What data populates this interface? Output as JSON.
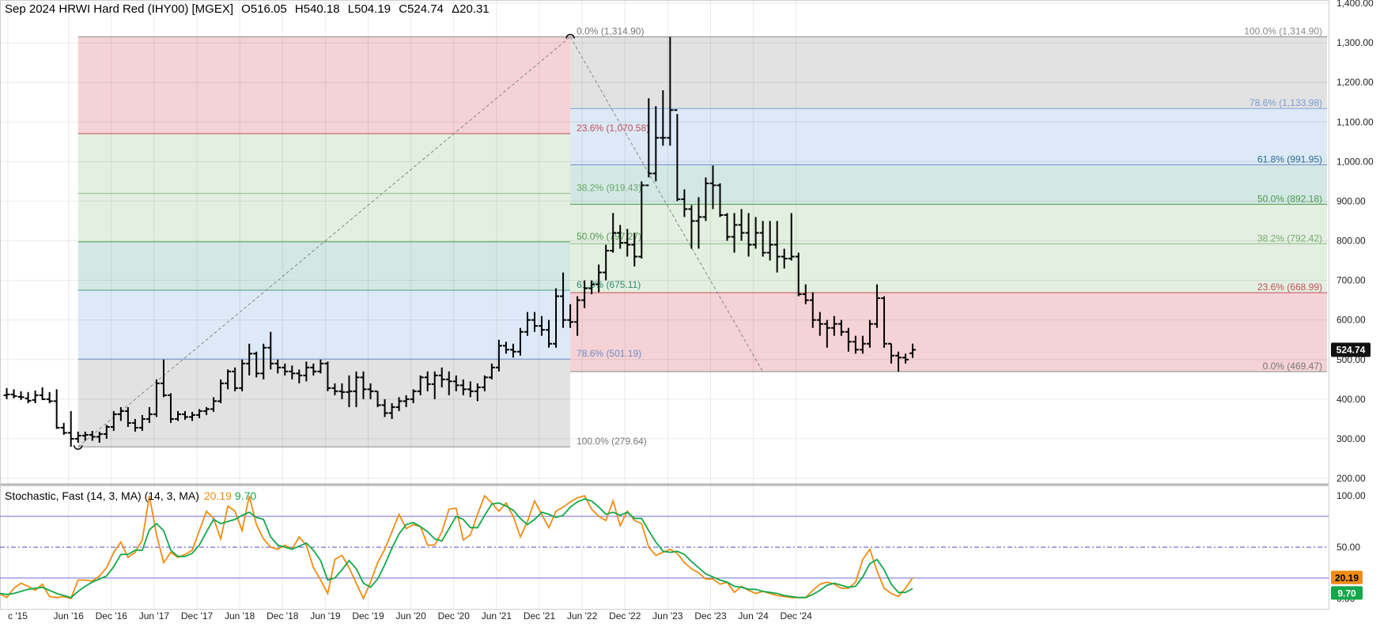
{
  "header": {
    "title": "Sep 2024 HRWI Hard Red (IHY00) [MGEX]",
    "open": "O516.05",
    "high": "H540.18",
    "low": "L504.19",
    "close": "C524.74",
    "change": "Δ20.31"
  },
  "stochastic_header": {
    "label": "Stochastic, Fast (14, 3, MA)  (14, 3, MA)",
    "k_value": "20.19",
    "d_value": "9.70"
  },
  "price_badge": "524.74",
  "k_badge": "20.19",
  "d_badge": "9.70",
  "colors": {
    "fib_red": "#f5d2d6",
    "fib_green": "#e3efe0",
    "fib_teal": "#d3e8e4",
    "fib_blue": "#dde9f7",
    "fib_gray": "#e2e2e2",
    "stoch_k": "#f28c14",
    "stoch_d": "#12a84a"
  },
  "chart_data": [
    {
      "type": "ohlc",
      "ylim": [
        200,
        1400
      ],
      "y_ticks": [
        "200.00",
        "300.00",
        "400.00",
        "500.00",
        "600.00",
        "700.00",
        "800.00",
        "900.00",
        "1,000.00",
        "1,100.00",
        "1,200.00",
        "1,300.00",
        "1,400.00"
      ],
      "x_ticks": [
        "c '15",
        "Jun '16",
        "Dec '16",
        "Jun '17",
        "Dec '17",
        "Jun '18",
        "Dec '18",
        "Jun '19",
        "Dec '19",
        "Jun '20",
        "Dec '20",
        "Jun '21",
        "Dec '21",
        "Jun '22",
        "Dec '22",
        "Jun '23",
        "Dec '23",
        "Jun '24",
        "Dec '24"
      ],
      "x_start": "2015-10",
      "fib_retracement_up": {
        "from": {
          "date": "2016-08",
          "value": 279.64
        },
        "to": {
          "date": "2022-05",
          "value": 1314.9
        },
        "levels": [
          {
            "label": "0.0% (1,314.90)",
            "value": 1314.9
          },
          {
            "label": "23.6% (1,070.58)",
            "value": 1070.58
          },
          {
            "label": "38.2% (919.43)",
            "value": 919.43
          },
          {
            "label": "50.0% (797.27)",
            "value": 797.27
          },
          {
            "label": "61.8% (675.11)",
            "value": 675.11
          },
          {
            "label": "78.6% (501.19)",
            "value": 501.19
          },
          {
            "label": "100.0% (279.64)",
            "value": 279.64
          }
        ]
      },
      "fib_retracement_down": {
        "from": {
          "date": "2022-05",
          "value": 1314.9
        },
        "to": {
          "date": "2024-08",
          "value": 469.47
        },
        "levels": [
          {
            "label": "100.0% (1,314.90)",
            "value": 1314.9
          },
          {
            "label": "78.6% (1,133.98)",
            "value": 1133.98
          },
          {
            "label": "61.8% (991.95)",
            "value": 991.95
          },
          {
            "label": "50.0% (892.18)",
            "value": 892.18
          },
          {
            "label": "38.2% (792.42)",
            "value": 792.42
          },
          {
            "label": "23.6% (668.99)",
            "value": 668.99
          },
          {
            "label": "0.0% (469.47)",
            "value": 469.47
          }
        ]
      },
      "bars": [
        [
          410,
          428,
          400,
          412
        ],
        [
          412,
          425,
          402,
          408
        ],
        [
          406,
          420,
          398,
          405
        ],
        [
          402,
          418,
          390,
          396
        ],
        [
          398,
          422,
          390,
          410
        ],
        [
          410,
          430,
          398,
          400
        ],
        [
          400,
          418,
          390,
          395
        ],
        [
          395,
          425,
          325,
          328
        ],
        [
          328,
          340,
          310,
          315
        ],
        [
          315,
          370,
          280,
          300
        ],
        [
          300,
          318,
          290,
          308
        ],
        [
          308,
          318,
          295,
          310
        ],
        [
          310,
          320,
          295,
          305
        ],
        [
          305,
          318,
          290,
          312
        ],
        [
          312,
          335,
          300,
          330
        ],
        [
          330,
          370,
          320,
          362
        ],
        [
          362,
          380,
          345,
          370
        ],
        [
          370,
          380,
          330,
          340
        ],
        [
          340,
          350,
          318,
          328
        ],
        [
          328,
          360,
          320,
          350
        ],
        [
          350,
          380,
          340,
          362
        ],
        [
          362,
          450,
          355,
          440
        ],
        [
          440,
          500,
          405,
          410
        ],
        [
          410,
          415,
          340,
          350
        ],
        [
          350,
          370,
          345,
          362
        ],
        [
          362,
          370,
          348,
          355
        ],
        [
          355,
          368,
          345,
          360
        ],
        [
          360,
          375,
          352,
          370
        ],
        [
          370,
          380,
          360,
          375
        ],
        [
          375,
          405,
          368,
          395
        ],
        [
          395,
          450,
          390,
          440
        ],
        [
          440,
          475,
          425,
          470
        ],
        [
          470,
          480,
          420,
          428
        ],
        [
          428,
          500,
          420,
          490
        ],
        [
          490,
          540,
          460,
          515
        ],
        [
          515,
          520,
          455,
          465
        ],
        [
          465,
          540,
          450,
          530
        ],
        [
          530,
          570,
          475,
          490
        ],
        [
          490,
          500,
          465,
          480
        ],
        [
          480,
          490,
          460,
          470
        ],
        [
          470,
          485,
          450,
          465
        ],
        [
          465,
          475,
          440,
          460
        ],
        [
          460,
          495,
          445,
          480
        ],
        [
          480,
          490,
          460,
          470
        ],
        [
          470,
          500,
          465,
          490
        ],
        [
          490,
          495,
          420,
          428
        ],
        [
          428,
          440,
          410,
          420
        ],
        [
          420,
          440,
          400,
          418
        ],
        [
          418,
          460,
          380,
          420
        ],
        [
          420,
          470,
          380,
          455
        ],
        [
          455,
          470,
          400,
          425
        ],
        [
          425,
          440,
          400,
          420
        ],
        [
          420,
          420,
          380,
          385
        ],
        [
          385,
          400,
          355,
          365
        ],
        [
          365,
          390,
          350,
          380
        ],
        [
          380,
          405,
          370,
          395
        ],
        [
          395,
          410,
          380,
          400
        ],
        [
          400,
          425,
          390,
          420
        ],
        [
          420,
          460,
          410,
          455
        ],
        [
          455,
          470,
          420,
          438
        ],
        [
          438,
          470,
          400,
          460
        ],
        [
          460,
          480,
          430,
          450
        ],
        [
          450,
          470,
          410,
          445
        ],
        [
          445,
          460,
          420,
          435
        ],
        [
          435,
          450,
          410,
          425
        ],
        [
          425,
          445,
          405,
          420
        ],
        [
          420,
          440,
          395,
          430
        ],
        [
          430,
          460,
          420,
          455
        ],
        [
          455,
          490,
          450,
          480
        ],
        [
          480,
          550,
          470,
          535
        ],
        [
          535,
          545,
          515,
          525
        ],
        [
          525,
          540,
          505,
          520
        ],
        [
          520,
          580,
          510,
          570
        ],
        [
          570,
          620,
          560,
          600
        ],
        [
          600,
          620,
          570,
          585
        ],
        [
          585,
          610,
          560,
          575
        ],
        [
          575,
          600,
          530,
          540
        ],
        [
          540,
          680,
          530,
          660
        ],
        [
          660,
          720,
          580,
          600
        ],
        [
          600,
          640,
          580,
          595
        ],
        [
          595,
          660,
          560,
          650
        ],
        [
          650,
          700,
          630,
          680
        ],
        [
          680,
          700,
          665,
          690
        ],
        [
          690,
          740,
          670,
          720
        ],
        [
          720,
          790,
          700,
          775
        ],
        [
          775,
          870,
          770,
          820
        ],
        [
          820,
          840,
          780,
          795
        ],
        [
          795,
          830,
          760,
          790
        ],
        [
          790,
          820,
          735,
          760
        ],
        [
          760,
          950,
          755,
          940
        ],
        [
          940,
          1160,
          960,
          970
        ],
        [
          970,
          1140,
          950,
          1060
        ],
        [
          1060,
          1180,
          1040,
          1060
        ],
        [
          1060,
          1314.9,
          1040,
          1130
        ],
        [
          1130,
          1120,
          900,
          905
        ],
        [
          905,
          930,
          860,
          880
        ],
        [
          880,
          890,
          780,
          850
        ],
        [
          850,
          910,
          780,
          860
        ],
        [
          860,
          960,
          850,
          945
        ],
        [
          945,
          990,
          880,
          940
        ],
        [
          940,
          945,
          860,
          865
        ],
        [
          865,
          870,
          800,
          810
        ],
        [
          810,
          870,
          770,
          840
        ],
        [
          840,
          880,
          800,
          820
        ],
        [
          820,
          870,
          760,
          790
        ],
        [
          790,
          860,
          780,
          820
        ],
        [
          820,
          850,
          760,
          770
        ],
        [
          770,
          850,
          750,
          790
        ],
        [
          790,
          850,
          720,
          760
        ],
        [
          760,
          780,
          730,
          755
        ],
        [
          755,
          870,
          750,
          760
        ],
        [
          760,
          770,
          660,
          665
        ],
        [
          665,
          690,
          640,
          650
        ],
        [
          650,
          670,
          580,
          600
        ],
        [
          600,
          620,
          560,
          590
        ],
        [
          590,
          600,
          530,
          580
        ],
        [
          580,
          610,
          560,
          590
        ],
        [
          590,
          600,
          560,
          570
        ],
        [
          570,
          580,
          520,
          545
        ],
        [
          545,
          560,
          515,
          525
        ],
        [
          525,
          560,
          515,
          540
        ],
        [
          540,
          600,
          530,
          590
        ],
        [
          590,
          690,
          580,
          655
        ],
        [
          655,
          660,
          530,
          540
        ],
        [
          540,
          540,
          490,
          510
        ],
        [
          510,
          520,
          469.47,
          505
        ],
        [
          505,
          515,
          490,
          500
        ],
        [
          516.05,
          540.18,
          504.19,
          524.74
        ]
      ]
    },
    {
      "type": "line",
      "title": "Stochastic, Fast (14, 3, MA)",
      "ylim": [
        0,
        100
      ],
      "y_ticks": [
        "0.00",
        "50.00",
        "100.00"
      ],
      "reference_lines": [
        80,
        50,
        20
      ],
      "series": [
        {
          "name": "%K",
          "values": [
            3,
            5,
            1,
            10,
            15,
            12,
            8,
            14,
            2,
            1,
            2,
            0,
            18,
            18,
            17,
            22,
            30,
            45,
            55,
            40,
            45,
            57,
            100,
            62,
            35,
            45,
            40,
            43,
            47,
            66,
            85,
            78,
            58,
            90,
            85,
            66,
            100,
            72,
            58,
            50,
            48,
            52,
            48,
            60,
            52,
            30,
            18,
            5,
            38,
            42,
            30,
            15,
            0,
            16,
            35,
            48,
            65,
            82,
            68,
            72,
            70,
            52,
            52,
            65,
            87,
            88,
            57,
            62,
            82,
            100,
            93,
            85,
            93,
            80,
            60,
            75,
            95,
            82,
            69,
            85,
            89,
            94,
            98,
            100,
            87,
            80,
            76,
            95,
            71,
            85,
            76,
            73,
            50,
            42,
            45,
            48,
            44,
            35,
            29,
            25,
            19,
            19,
            14,
            16,
            6,
            12,
            8,
            5,
            7,
            5,
            3,
            2,
            1,
            1,
            1,
            8,
            14,
            16,
            14,
            10,
            10,
            16,
            38,
            48,
            27,
            10,
            5,
            2,
            10,
            20.19
          ]
        },
        {
          "name": "%D",
          "values": [
            4,
            5,
            4,
            5,
            7,
            9,
            10,
            11,
            8,
            5,
            3,
            1,
            7,
            12,
            16,
            19,
            22,
            31,
            43,
            43,
            47,
            47,
            67,
            73,
            66,
            47,
            41,
            41,
            44,
            52,
            65,
            77,
            73,
            75,
            77,
            81,
            84,
            79,
            77,
            60,
            52,
            50,
            48,
            51,
            54,
            47,
            37,
            18,
            20,
            28,
            37,
            29,
            15,
            11,
            19,
            33,
            49,
            63,
            72,
            74,
            70,
            65,
            58,
            56,
            68,
            80,
            77,
            69,
            69,
            81,
            92,
            93,
            90,
            86,
            78,
            72,
            77,
            84,
            82,
            79,
            81,
            89,
            94,
            97,
            95,
            89,
            82,
            84,
            81,
            84,
            78,
            78,
            66,
            55,
            46,
            45,
            46,
            43,
            36,
            30,
            24,
            21,
            18,
            16,
            12,
            11,
            9,
            9,
            7,
            6,
            5,
            3,
            2,
            1,
            1,
            4,
            8,
            13,
            15,
            13,
            11,
            12,
            21,
            34,
            38,
            28,
            14,
            6,
            6,
            9.7
          ]
        }
      ]
    }
  ]
}
